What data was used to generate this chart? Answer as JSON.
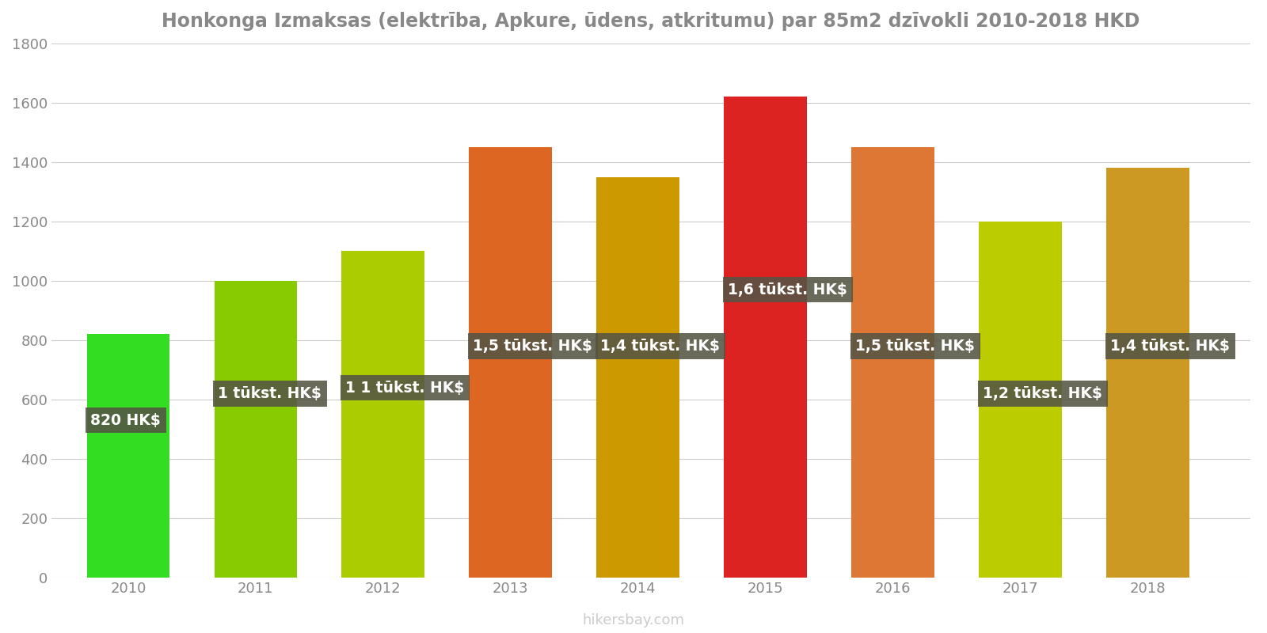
{
  "years": [
    2010,
    2011,
    2012,
    2013,
    2014,
    2015,
    2016,
    2017,
    2018
  ],
  "values": [
    820,
    1000,
    1100,
    1450,
    1350,
    1620,
    1450,
    1200,
    1380
  ],
  "bar_colors": [
    "#33dd22",
    "#88cc00",
    "#aacc00",
    "#dd6622",
    "#cc9900",
    "#dd2222",
    "#dd7733",
    "#bbcc00",
    "#cc9922"
  ],
  "labels": [
    "820 HK$",
    "1 tūkst. HK$",
    "1 1 tūkst. HK$",
    "1,5 tūkst. HK$",
    "1,4 tūkst. HK$",
    "1,6 tūkst. HK$",
    "1,5 tūkst. HK$",
    "1,2 tūkst. HK$",
    "1,4 tūkst. HK$"
  ],
  "label_y_positions": [
    530,
    620,
    640,
    780,
    780,
    970,
    780,
    620,
    780
  ],
  "title": "Honkonga Izmaksas (elektrība, Apkure, ūdens, atkritumu) par 85m2 dzīvokli 2010-2018 HKD",
  "ylim": [
    0,
    1800
  ],
  "yticks": [
    0,
    200,
    400,
    600,
    800,
    1000,
    1200,
    1400,
    1600,
    1800
  ],
  "background_color": "#ffffff",
  "label_bg_color": "#555544",
  "label_text_color": "#ffffff",
  "watermark": "hikersbay.com",
  "title_fontsize": 17,
  "bar_width": 0.65
}
